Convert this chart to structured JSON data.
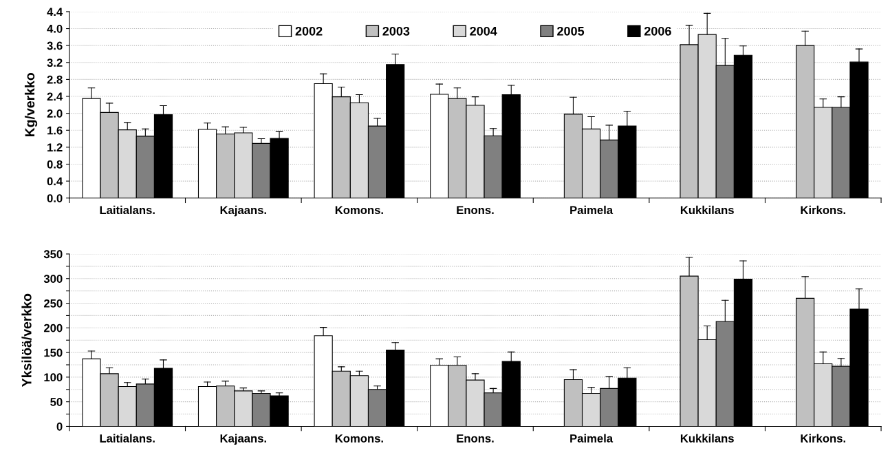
{
  "chart_data": [
    {
      "type": "bar",
      "ylabel": "Kg/verkko",
      "categories": [
        "Laitialans.",
        "Kajaans.",
        "Komons.",
        "Enons.",
        "Paimela",
        "Kukkilans",
        "Kirkons."
      ],
      "ylim": [
        0,
        4.4
      ],
      "yticks": [
        {
          "value": 0,
          "label": "0.0"
        },
        0.4,
        0.8,
        1.2,
        1.6,
        {
          "value": 2,
          "label": "2.0"
        },
        2.4,
        2.8,
        3.2,
        3.6,
        {
          "value": 4,
          "label": "4.0"
        },
        4.4
      ],
      "grid": "y",
      "legend": "top",
      "series": [
        {
          "name": "2002",
          "color": "#ffffff",
          "values": [
            2.35,
            1.62,
            2.7,
            2.45,
            null,
            null,
            null
          ],
          "errors": [
            [
              2.35,
              2.6
            ],
            [
              1.62,
              1.77
            ],
            [
              2.7,
              2.93
            ],
            [
              2.45,
              2.69
            ],
            null,
            null,
            null
          ]
        },
        {
          "name": "2003",
          "color": "#c0c0c0",
          "values": [
            2.02,
            1.51,
            2.39,
            2.35,
            1.98,
            3.62,
            3.6
          ],
          "errors": [
            [
              2.02,
              2.24
            ],
            [
              1.51,
              1.68
            ],
            [
              2.39,
              2.62
            ],
            [
              2.35,
              2.6
            ],
            [
              1.98,
              2.38
            ],
            [
              3.62,
              4.08
            ],
            [
              3.6,
              3.94
            ]
          ]
        },
        {
          "name": "2004",
          "color": "#d9d9d9",
          "values": [
            1.61,
            1.54,
            2.25,
            2.19,
            1.63,
            3.86,
            2.14
          ],
          "errors": [
            [
              1.61,
              1.78
            ],
            [
              1.54,
              1.67
            ],
            [
              2.25,
              2.44
            ],
            [
              2.19,
              2.39
            ],
            [
              1.63,
              1.92
            ],
            [
              3.86,
              4.36
            ],
            [
              2.14,
              2.34
            ]
          ]
        },
        {
          "name": "2005",
          "color": "#808080",
          "values": [
            1.46,
            1.29,
            1.7,
            1.47,
            1.37,
            3.13,
            2.14
          ],
          "errors": [
            [
              1.46,
              1.63
            ],
            [
              1.29,
              1.4
            ],
            [
              1.7,
              1.88
            ],
            [
              1.47,
              1.64
            ],
            [
              1.37,
              1.72
            ],
            [
              3.13,
              3.77
            ],
            [
              2.14,
              2.39
            ]
          ]
        },
        {
          "name": "2006",
          "color": "#000000",
          "values": [
            1.97,
            1.41,
            3.15,
            2.44,
            1.7,
            3.37,
            3.21
          ],
          "errors": [
            [
              1.97,
              2.18
            ],
            [
              1.41,
              1.57
            ],
            [
              3.15,
              3.4
            ],
            [
              2.44,
              2.66
            ],
            [
              1.7,
              2.05
            ],
            [
              3.37,
              3.59
            ],
            [
              3.21,
              3.52
            ]
          ]
        }
      ]
    },
    {
      "type": "bar",
      "ylabel": "Yksilöä/verkko",
      "categories": [
        "Laitialans.",
        "Kajaans.",
        "Komons.",
        "Enons.",
        "Paimela",
        "Kukkilans",
        "Kirkons."
      ],
      "ylim": [
        0,
        350
      ],
      "yticks": [
        0,
        {
          "value": 25,
          "label": null
        },
        50,
        {
          "value": 75,
          "label": null
        },
        100,
        {
          "value": 125,
          "label": null
        },
        150,
        {
          "value": 175,
          "label": null
        },
        200,
        {
          "value": 225,
          "label": null
        },
        250,
        {
          "value": 275,
          "label": null
        },
        300,
        {
          "value": 325,
          "label": null
        },
        350
      ],
      "grid": "y",
      "series": [
        {
          "color": "#ffffff",
          "values": [
            137,
            81,
            184,
            124,
            null,
            null,
            null
          ],
          "errors": [
            [
              137,
              153
            ],
            [
              81,
              90
            ],
            [
              184,
              201
            ],
            [
              124,
              137
            ],
            null,
            null,
            null
          ]
        },
        {
          "color": "#c0c0c0",
          "values": [
            107,
            82,
            112,
            124,
            95,
            305,
            260
          ],
          "errors": [
            [
              107,
              119
            ],
            [
              82,
              92
            ],
            [
              112,
              121
            ],
            [
              124,
              141
            ],
            [
              95,
              115
            ],
            [
              305,
              343
            ],
            [
              260,
              304
            ]
          ]
        },
        {
          "color": "#d9d9d9",
          "values": [
            81,
            72,
            103,
            94,
            67,
            176,
            127
          ],
          "errors": [
            [
              81,
              89
            ],
            [
              72,
              78
            ],
            [
              103,
              112
            ],
            [
              94,
              107
            ],
            [
              67,
              79
            ],
            [
              176,
              204
            ],
            [
              127,
              151
            ]
          ]
        },
        {
          "color": "#808080",
          "values": [
            86,
            67,
            75,
            68,
            77,
            213,
            122
          ],
          "errors": [
            [
              86,
              96
            ],
            [
              67,
              72
            ],
            [
              75,
              82
            ],
            [
              68,
              77
            ],
            [
              77,
              101
            ],
            [
              213,
              256
            ],
            [
              122,
              138
            ]
          ]
        },
        {
          "color": "#000000",
          "values": [
            118,
            62,
            155,
            132,
            98,
            299,
            238
          ],
          "errors": [
            [
              118,
              135
            ],
            [
              62,
              68
            ],
            [
              155,
              170
            ],
            [
              132,
              151
            ],
            [
              98,
              119
            ],
            [
              299,
              336
            ],
            [
              238,
              279
            ]
          ]
        }
      ]
    }
  ]
}
